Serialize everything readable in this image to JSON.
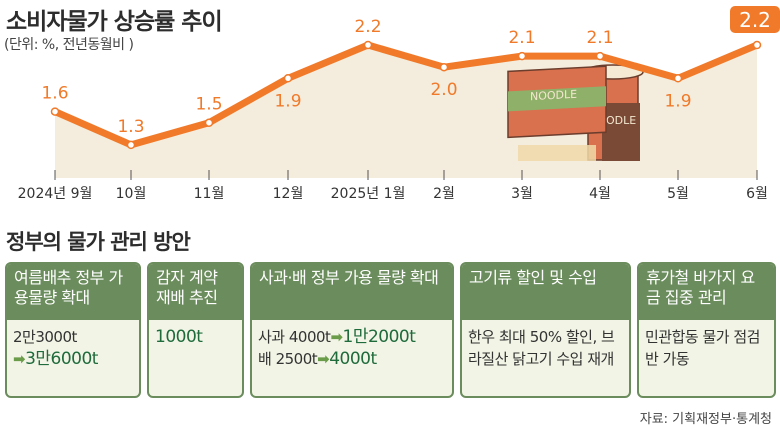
{
  "header": {
    "title": "소비자물가 상승률 추이",
    "subtitle": "(단위: %, 전년동월비 )"
  },
  "colors": {
    "line": "#f07a2a",
    "area": "#f4ecdc",
    "green": "#6b8c5c",
    "box_bg": "#f2f4e6",
    "value_green": "#1f6b3c"
  },
  "chart_data": {
    "type": "area",
    "title": "소비자물가 상승률 추이",
    "unit": "(단위: %, 전년동월비 )",
    "categories": [
      "2024년 9월",
      "10월",
      "11월",
      "12월",
      "2025년 1월",
      "2월",
      "3월",
      "4월",
      "5월",
      "6월"
    ],
    "values": [
      1.6,
      1.3,
      1.5,
      1.9,
      2.2,
      2.0,
      2.1,
      2.1,
      1.9,
      2.2
    ],
    "labels": [
      "1.6",
      "1.3",
      "1.5",
      "1.9",
      "2.2",
      "2.0",
      "2.1",
      "2.1",
      "1.9",
      "2.2"
    ],
    "highlight_last": true,
    "grid": false
  },
  "illustration": {
    "name": "noodle-packages",
    "text1": "NOODLE",
    "text2": "ODLE"
  },
  "section": {
    "title": "정부의 물가 관리 방안"
  },
  "cards": [
    {
      "header": "여름배추 정부 가용물량 확대",
      "line1": "2만3000t",
      "arrow": "➡",
      "line2": "3만6000t"
    },
    {
      "header": "감자 계약 재배 추진",
      "line1": "1000t"
    },
    {
      "header": "사과·배 정부 가용 물량 확대",
      "r1a": "사과 4000t",
      "r1arrow": "➡",
      "r1b": "1만2000t",
      "r2a": "배 2500t",
      "r2arrow": "➡",
      "r2b": "4000t"
    },
    {
      "header": "고기류 할인 및 수입",
      "body": "한우 최대 50% 할인, 브라질산 닭고기 수입 재개"
    },
    {
      "header": "휴가철 바가지 요금 집중 관리",
      "body": "민관합동 물가 점검반 가동"
    }
  ],
  "source": "자료: 기획재정부·통계청"
}
